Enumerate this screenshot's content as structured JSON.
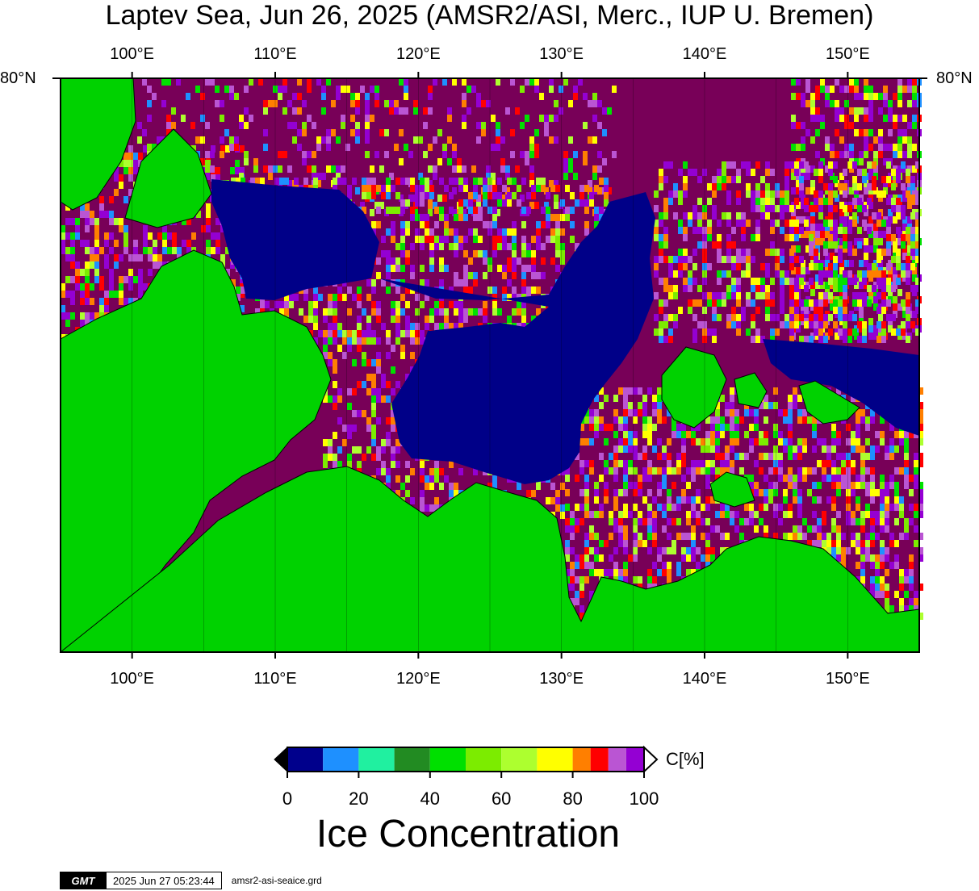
{
  "title": "Laptev Sea, Jun 26, 2025 (AMSR2/ASI, Merc., IUP U. Bremen)",
  "map": {
    "lon_labels": [
      "100°E",
      "110°E",
      "120°E",
      "130°E",
      "140°E",
      "150°E"
    ],
    "lon_values": [
      100,
      110,
      120,
      130,
      140,
      150
    ],
    "lon_range": [
      95,
      155
    ],
    "lat_label": "80°N",
    "colors": {
      "land": "#00d200",
      "open_water": "#000088",
      "high_ice": "#780058"
    }
  },
  "colorbar": {
    "unit": "C[%]",
    "ticks": [
      "0",
      "20",
      "40",
      "60",
      "80",
      "100"
    ],
    "tick_values": [
      0,
      20,
      40,
      60,
      80,
      100
    ],
    "range": [
      0,
      100
    ],
    "segments": [
      {
        "from": 0,
        "to": 10,
        "color": "#00008c"
      },
      {
        "from": 10,
        "to": 20,
        "color": "#1e90ff"
      },
      {
        "from": 20,
        "to": 30,
        "color": "#20f0a0"
      },
      {
        "from": 30,
        "to": 40,
        "color": "#228b22"
      },
      {
        "from": 40,
        "to": 50,
        "color": "#00e000"
      },
      {
        "from": 50,
        "to": 60,
        "color": "#7cec00"
      },
      {
        "from": 60,
        "to": 70,
        "color": "#adff2f"
      },
      {
        "from": 70,
        "to": 80,
        "color": "#ffff00"
      },
      {
        "from": 80,
        "to": 85,
        "color": "#ff7f00"
      },
      {
        "from": 85,
        "to": 90,
        "color": "#ff0000"
      },
      {
        "from": 90,
        "to": 95,
        "color": "#ba55d3"
      },
      {
        "from": 95,
        "to": 100,
        "color": "#9400d3"
      }
    ],
    "label": "Ice Concentration"
  },
  "footer": {
    "logo_text": "GMT",
    "timestamp": "2025 Jun 27 05:23:44",
    "filename": "amsr2-asi-seaice.grd"
  }
}
